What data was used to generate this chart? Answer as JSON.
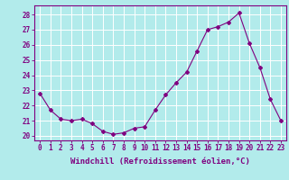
{
  "hours": [
    0,
    1,
    2,
    3,
    4,
    5,
    6,
    7,
    8,
    9,
    10,
    11,
    12,
    13,
    14,
    15,
    16,
    17,
    18,
    19,
    20,
    21,
    22,
    23
  ],
  "values": [
    22.8,
    21.7,
    21.1,
    21.0,
    21.1,
    20.8,
    20.3,
    20.1,
    20.2,
    20.5,
    20.6,
    21.7,
    22.7,
    23.5,
    24.2,
    25.6,
    27.0,
    27.2,
    27.5,
    28.1,
    26.1,
    24.5,
    22.4,
    21.0
  ],
  "line_color": "#800080",
  "marker": "D",
  "bg_color": "#b2ebeb",
  "grid_color": "#aadddd",
  "xlabel": "Windchill (Refroidissement éolien,°C)",
  "ylabel_ticks": [
    20,
    21,
    22,
    23,
    24,
    25,
    26,
    27,
    28
  ],
  "ylim": [
    19.7,
    28.6
  ],
  "xlim": [
    -0.5,
    23.5
  ],
  "tick_color": "#800080",
  "label_color": "#800080",
  "tick_fontsize": 5.5,
  "xlabel_fontsize": 6.5,
  "marker_size": 2.0,
  "linewidth": 0.8
}
